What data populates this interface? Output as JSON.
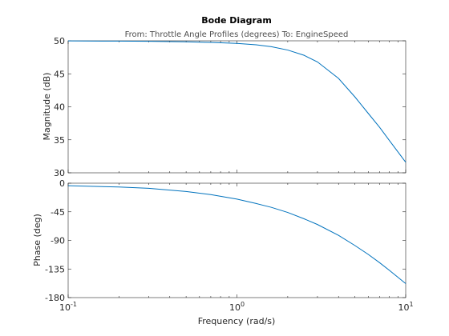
{
  "chart_data": {
    "type": "line",
    "title": "Bode Diagram",
    "subtitle": "From: Throttle Angle Profiles (degrees)  To: EngineSpeed",
    "xlabel": "Frequency  (rad/s)",
    "x_scale": "log",
    "xlim": [
      0.1,
      10
    ],
    "x_ticks": [
      {
        "value": 0.1,
        "base": "10",
        "exp": "-1"
      },
      {
        "value": 1,
        "base": "10",
        "exp": "0"
      },
      {
        "value": 10,
        "base": "10",
        "exp": "1"
      }
    ],
    "grid": false,
    "colors": {
      "line": "#0072bd",
      "axes": "#262626"
    },
    "panels": [
      {
        "name": "magnitude",
        "ylabel": "Magnitude (dB)",
        "ylim": [
          30,
          50
        ],
        "y_ticks": [
          "30",
          "35",
          "40",
          "45",
          "50"
        ],
        "series": [
          {
            "x": [
              0.1,
              0.2,
              0.3,
              0.5,
              0.7,
              1.0,
              1.3,
              1.6,
              2.0,
              2.5,
              3.0,
              4.0,
              5.0,
              6.0,
              7.0,
              8.0,
              10.0
            ],
            "y": [
              49.98,
              49.95,
              49.92,
              49.85,
              49.75,
              49.6,
              49.4,
              49.1,
              48.6,
              47.8,
              46.8,
              44.3,
              41.5,
              39.0,
              36.9,
              34.9,
              31.6
            ]
          }
        ]
      },
      {
        "name": "phase",
        "ylabel": "Phase (deg)",
        "ylim": [
          -180,
          0
        ],
        "y_ticks": [
          "-180",
          "-135",
          "-90",
          "-45",
          "0"
        ],
        "series": [
          {
            "x": [
              0.1,
              0.2,
              0.3,
              0.5,
              0.7,
              1.0,
              1.3,
              1.6,
              2.0,
              2.5,
              3.0,
              4.0,
              5.0,
              6.0,
              7.0,
              8.0,
              10.0
            ],
            "y": [
              -4,
              -6,
              -8,
              -13,
              -18,
              -25,
              -32,
              -38,
              -46,
              -56,
              -65,
              -82,
              -98,
              -112,
              -125,
              -137,
              -158
            ]
          }
        ]
      }
    ]
  }
}
